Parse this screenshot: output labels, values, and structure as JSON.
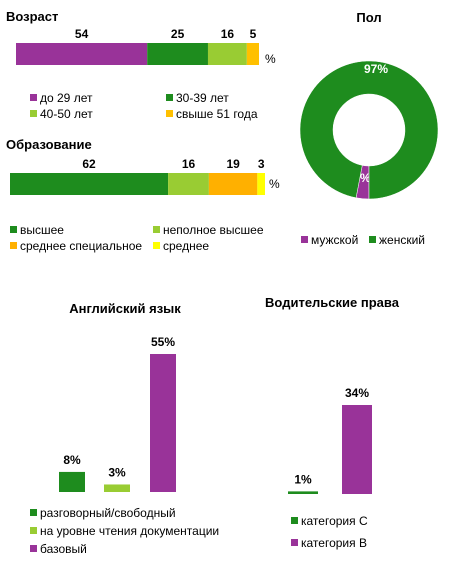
{
  "chart_data": [
    {
      "type": "bar",
      "orientation": "horizontal-stacked",
      "title": "Возраст",
      "unit": "%",
      "series": [
        {
          "name": "до 29 лет",
          "values": [
            54
          ],
          "color": "#993399"
        },
        {
          "name": "30-39 лет",
          "values": [
            25
          ],
          "color": "#1E8C1E"
        },
        {
          "name": "40-50 лет",
          "values": [
            16
          ],
          "color": "#99CC33"
        },
        {
          "name": "свыше 51 года",
          "values": [
            5
          ],
          "color": "#FFC000"
        }
      ]
    },
    {
      "type": "bar",
      "orientation": "horizontal-stacked",
      "title": "Образование",
      "unit": "%",
      "series": [
        {
          "name": "высшее",
          "values": [
            62
          ],
          "color": "#1E8C1E"
        },
        {
          "name": "неполное высшее",
          "values": [
            16
          ],
          "color": "#99CC33"
        },
        {
          "name": "среднее специальное",
          "values": [
            19
          ],
          "color": "#FFB000"
        },
        {
          "name": "среднее",
          "values": [
            3
          ],
          "color": "#FFFF00"
        }
      ]
    },
    {
      "type": "pie",
      "variant": "donut",
      "title": "Пол",
      "slices": [
        {
          "name": "мужской",
          "value": 3,
          "label": "3%",
          "color": "#993399"
        },
        {
          "name": "женский",
          "value": 97,
          "label": "97%",
          "color": "#1E8C1E"
        }
      ]
    },
    {
      "type": "bar",
      "title": "Английский язык",
      "series": [
        {
          "name": "разговорный/свободный",
          "values": [
            8
          ],
          "label": "8%",
          "color": "#1E8C1E"
        },
        {
          "name": "на уровне чтения документации",
          "values": [
            3
          ],
          "label": "3%",
          "color": "#99CC33"
        },
        {
          "name": "базовый",
          "values": [
            55
          ],
          "label": "55%",
          "color": "#993399"
        }
      ]
    },
    {
      "type": "bar",
      "title": "Водительские права",
      "series": [
        {
          "name": "категория C",
          "values": [
            1
          ],
          "label": "1%",
          "color": "#1E8C1E"
        },
        {
          "name": "категория B",
          "values": [
            34
          ],
          "label": "34%",
          "color": "#993399"
        }
      ]
    }
  ]
}
